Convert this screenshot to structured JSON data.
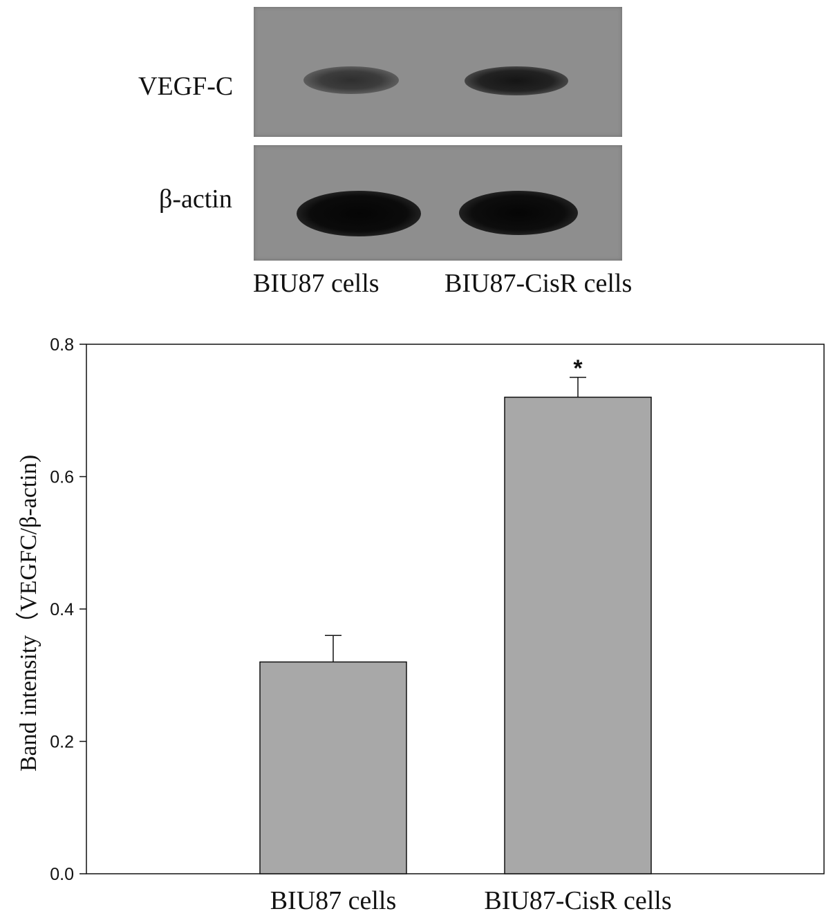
{
  "blot": {
    "row_labels": [
      "VEGF-C",
      "β-actin"
    ],
    "lane_labels": [
      "BIU87 cells",
      "BIU87-CisR cells"
    ]
  },
  "chart_data": {
    "type": "bar",
    "categories": [
      "BIU87 cells",
      "BIU87-CisR cells"
    ],
    "values": [
      0.32,
      0.72
    ],
    "errors": [
      0.04,
      0.03
    ],
    "annotations": [
      "",
      "*"
    ],
    "title": "",
    "xlabel": "",
    "ylabel": "Band intensity（VEGFC/β-actin)",
    "ylim": [
      0.0,
      0.8
    ],
    "yticks": [
      "0.0",
      "0.2",
      "0.4",
      "0.6",
      "0.8"
    ],
    "grid": false,
    "bar_color": "#a8a8a8"
  }
}
